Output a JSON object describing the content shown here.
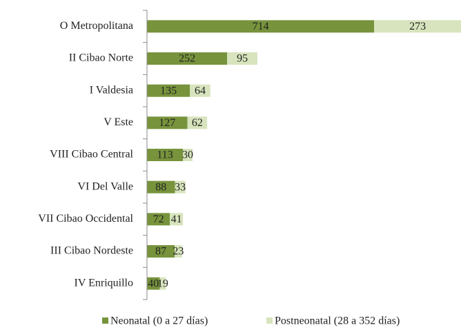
{
  "chart_data": {
    "type": "bar",
    "orientation": "horizontal",
    "stacked": true,
    "categories": [
      "O Metropolitana",
      "II Cibao Norte",
      "I Valdesia",
      "V Este",
      "VIII Cibao Central",
      "VI Del Valle",
      "VII Cibao Occidental",
      "III Cibao Nordeste",
      "IV Enriquillo"
    ],
    "series": [
      {
        "name": "Neonatal (0 a 27 días)",
        "color": "#77933c",
        "values": [
          714,
          252,
          135,
          127,
          113,
          88,
          72,
          87,
          40
        ]
      },
      {
        "name": "Postneonatal (28 a 352 días)",
        "color": "#d7e4bd",
        "values": [
          273,
          95,
          64,
          62,
          30,
          33,
          41,
          23,
          19
        ]
      }
    ],
    "legend": "bottom"
  }
}
